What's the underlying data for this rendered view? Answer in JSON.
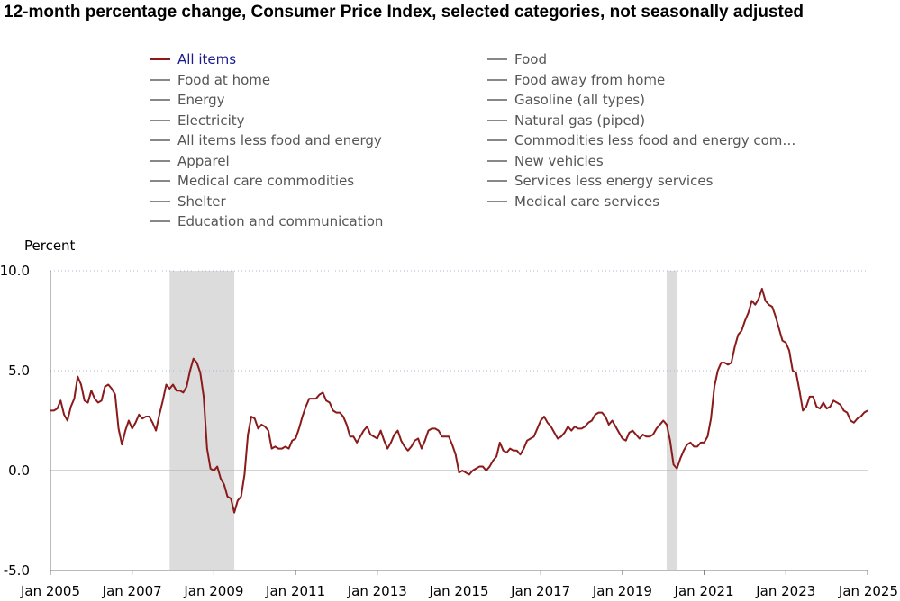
{
  "title": "12-month percentage change, Consumer Price Index, selected categories, not seasonally adjusted",
  "legend": [
    {
      "label": "All items",
      "active": true,
      "color": "#8b1a1a"
    },
    {
      "label": "Food at home",
      "active": false,
      "color": "#888888"
    },
    {
      "label": "Energy",
      "active": false,
      "color": "#888888"
    },
    {
      "label": "Electricity",
      "active": false,
      "color": "#888888"
    },
    {
      "label": "All items less food and energy",
      "active": false,
      "color": "#888888"
    },
    {
      "label": "Apparel",
      "active": false,
      "color": "#888888"
    },
    {
      "label": "Medical care commodities",
      "active": false,
      "color": "#888888"
    },
    {
      "label": "Shelter",
      "active": false,
      "color": "#888888"
    },
    {
      "label": "Education and communication",
      "active": false,
      "color": "#888888"
    },
    {
      "label": "Food",
      "active": false,
      "color": "#888888"
    },
    {
      "label": "Food away from home",
      "active": false,
      "color": "#888888"
    },
    {
      "label": "Gasoline (all types)",
      "active": false,
      "color": "#888888"
    },
    {
      "label": "Natural gas (piped)",
      "active": false,
      "color": "#888888"
    },
    {
      "label": "Commodities less food and energy com…",
      "active": false,
      "color": "#888888"
    },
    {
      "label": "New vehicles",
      "active": false,
      "color": "#888888"
    },
    {
      "label": "Services less energy services",
      "active": false,
      "color": "#888888"
    },
    {
      "label": "Medical care services",
      "active": false,
      "color": "#888888"
    }
  ],
  "chart_data": {
    "type": "line",
    "title": "12-month percentage change, Consumer Price Index, selected categories, not seasonally adjusted",
    "ylabel": "Percent",
    "xlabel": "",
    "ylim": [
      -5,
      10
    ],
    "xlim": [
      "2005-01",
      "2025-01"
    ],
    "y_ticks": [
      10.0,
      5.0,
      0.0,
      -5.0
    ],
    "y_tick_labels": [
      "10.0",
      "5.0",
      "0.0",
      "-5.0"
    ],
    "x_tick_labels": [
      "Jan 2005",
      "Jan 2007",
      "Jan 2009",
      "Jan 2011",
      "Jan 2013",
      "Jan 2015",
      "Jan 2017",
      "Jan 2019",
      "Jan 2021",
      "Jan 2023",
      "Jan 2025"
    ],
    "x_tick_dates": [
      "2005-01",
      "2007-01",
      "2009-01",
      "2011-01",
      "2013-01",
      "2015-01",
      "2017-01",
      "2019-01",
      "2021-01",
      "2023-01",
      "2025-01"
    ],
    "grid": "dotted horizontal",
    "recessions": [
      {
        "start": "2007-12",
        "end": "2009-06"
      },
      {
        "start": "2020-02",
        "end": "2020-04"
      }
    ],
    "series": [
      {
        "name": "All items",
        "color": "#8b1a1a",
        "start": "2005-01",
        "values": [
          3.0,
          3.0,
          3.1,
          3.5,
          2.8,
          2.5,
          3.2,
          3.6,
          4.7,
          4.3,
          3.5,
          3.4,
          4.0,
          3.6,
          3.4,
          3.5,
          4.2,
          4.3,
          4.1,
          3.8,
          2.1,
          1.3,
          2.0,
          2.5,
          2.1,
          2.4,
          2.8,
          2.6,
          2.7,
          2.7,
          2.4,
          2.0,
          2.8,
          3.5,
          4.3,
          4.1,
          4.3,
          4.0,
          4.0,
          3.9,
          4.2,
          5.0,
          5.6,
          5.4,
          4.9,
          3.7,
          1.1,
          0.1,
          0.0,
          0.2,
          -0.4,
          -0.7,
          -1.3,
          -1.4,
          -2.1,
          -1.5,
          -1.3,
          -0.2,
          1.8,
          2.7,
          2.6,
          2.1,
          2.3,
          2.2,
          2.0,
          1.1,
          1.2,
          1.1,
          1.1,
          1.2,
          1.1,
          1.5,
          1.6,
          2.1,
          2.7,
          3.2,
          3.6,
          3.6,
          3.6,
          3.8,
          3.9,
          3.5,
          3.4,
          3.0,
          2.9,
          2.9,
          2.7,
          2.3,
          1.7,
          1.7,
          1.4,
          1.7,
          2.0,
          2.2,
          1.8,
          1.7,
          1.6,
          2.0,
          1.5,
          1.1,
          1.4,
          1.8,
          2.0,
          1.5,
          1.2,
          1.0,
          1.2,
          1.5,
          1.6,
          1.1,
          1.5,
          2.0,
          2.1,
          2.1,
          2.0,
          1.7,
          1.7,
          1.7,
          1.3,
          0.8,
          -0.1,
          0.0,
          -0.1,
          -0.2,
          0.0,
          0.1,
          0.2,
          0.2,
          0.0,
          0.2,
          0.5,
          0.7,
          1.4,
          1.0,
          0.9,
          1.1,
          1.0,
          1.0,
          0.8,
          1.1,
          1.5,
          1.6,
          1.7,
          2.1,
          2.5,
          2.7,
          2.4,
          2.2,
          1.9,
          1.6,
          1.7,
          1.9,
          2.2,
          2.0,
          2.2,
          2.1,
          2.1,
          2.2,
          2.4,
          2.5,
          2.8,
          2.9,
          2.9,
          2.7,
          2.3,
          2.5,
          2.2,
          1.9,
          1.6,
          1.5,
          1.9,
          2.0,
          1.8,
          1.6,
          1.8,
          1.7,
          1.7,
          1.8,
          2.1,
          2.3,
          2.5,
          2.3,
          1.5,
          0.3,
          0.1,
          0.6,
          1.0,
          1.3,
          1.4,
          1.2,
          1.2,
          1.4,
          1.4,
          1.7,
          2.6,
          4.2,
          5.0,
          5.4,
          5.4,
          5.3,
          5.4,
          6.2,
          6.8,
          7.0,
          7.5,
          7.9,
          8.5,
          8.3,
          8.6,
          9.1,
          8.5,
          8.3,
          8.2,
          7.7,
          7.1,
          6.5,
          6.4,
          6.0,
          5.0,
          4.9,
          4.0,
          3.0,
          3.2,
          3.7,
          3.7,
          3.2,
          3.1,
          3.4,
          3.1,
          3.2,
          3.5,
          3.4,
          3.3,
          3.0,
          2.9,
          2.5,
          2.4,
          2.6,
          2.7,
          2.9,
          3.0
        ]
      }
    ]
  }
}
